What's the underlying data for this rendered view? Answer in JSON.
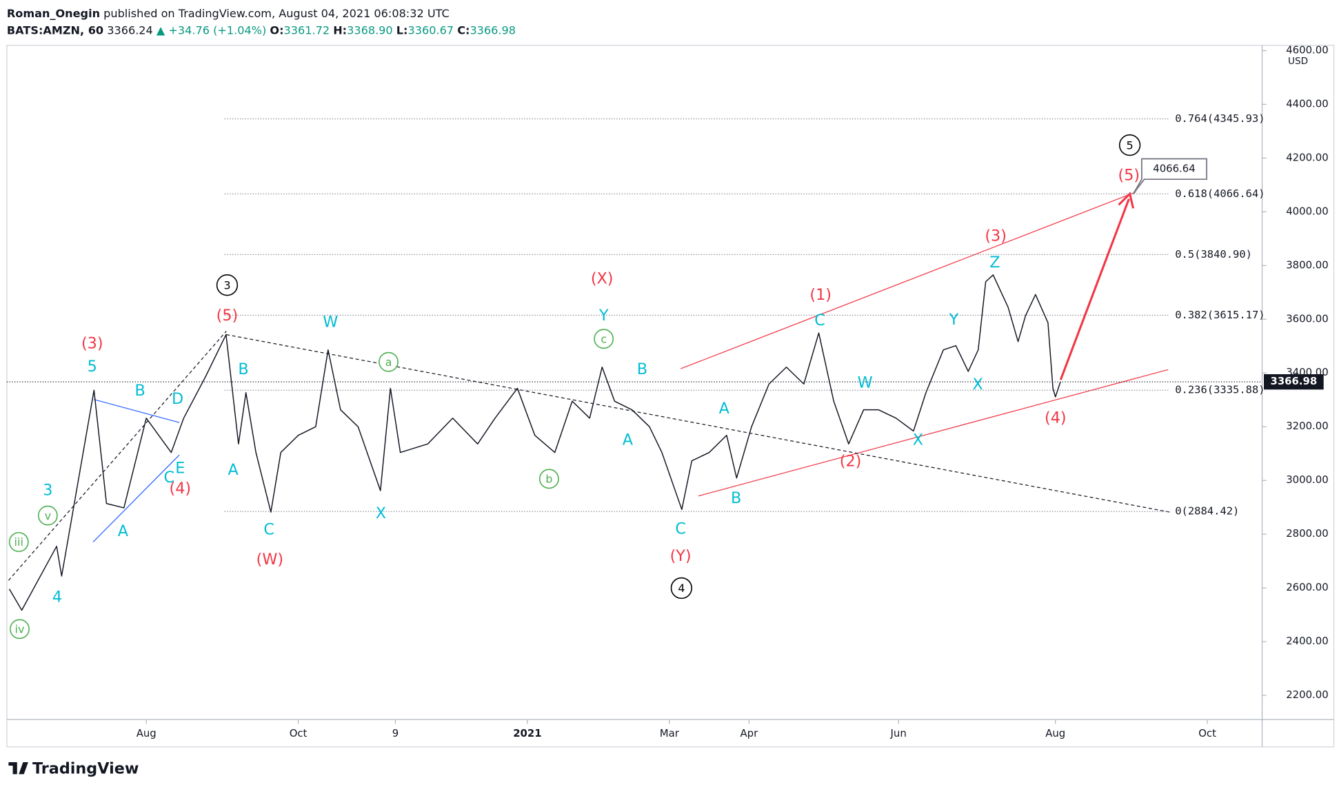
{
  "header": {
    "author": "Roman_Onegin",
    "published": "published on TradingView.com, August 04, 2021 06:08:32 UTC",
    "symbol": "BATS:AMZN, 60",
    "last": "3366.24",
    "change": "▲ +34.76 (+1.04%)",
    "ohlc": [
      {
        "label": "O:",
        "value": "3361.72"
      },
      {
        "label": "H:",
        "value": "3368.90"
      },
      {
        "label": "L:",
        "value": "3360.67"
      },
      {
        "label": "C:",
        "value": "3366.98"
      }
    ]
  },
  "chart_data": {
    "type": "line",
    "currency": "USD",
    "color": "#131722",
    "x": [
      -55,
      -50,
      -36,
      -34,
      -21,
      -16,
      -9,
      0,
      10,
      15,
      24,
      32,
      37,
      40,
      44,
      50,
      54,
      61,
      68,
      73,
      78,
      85,
      94,
      98,
      102,
      113,
      123,
      133,
      140,
      149,
      156,
      164,
      171,
      178,
      183,
      188,
      195,
      202,
      207,
      215,
      219,
      226,
      233,
      237,
      243,
      250,
      257,
      264,
      270,
      276,
      282,
      288,
      294,
      301,
      308,
      313,
      320,
      325,
      330,
      334,
      337,
      340,
      346,
      350,
      353,
      357,
      362,
      364,
      365,
      367
    ],
    "values": [
      2596,
      2517,
      2755,
      2644,
      3336,
      2914,
      2898,
      3232,
      3104,
      3232,
      3390,
      3543,
      3136,
      3327,
      3104,
      2882,
      3104,
      3168,
      3200,
      3486,
      3263,
      3200,
      2962,
      3343,
      3104,
      3136,
      3232,
      3136,
      3232,
      3343,
      3168,
      3104,
      3295,
      3232,
      3422,
      3295,
      3263,
      3200,
      3104,
      2892,
      3073,
      3104,
      3168,
      3009,
      3200,
      3359,
      3422,
      3359,
      3549,
      3295,
      3136,
      3263,
      3263,
      3232,
      3184,
      3327,
      3486,
      3502,
      3406,
      3486,
      3740,
      3765,
      3645,
      3517,
      3613,
      3692,
      3587,
      3343,
      3311,
      3366.98
    ],
    "xlim": [
      -56,
      448
    ],
    "ylim": [
      2110,
      4620
    ],
    "xticks": [
      {
        "value": 0,
        "label": "Aug"
      },
      {
        "value": 61,
        "label": "Oct"
      },
      {
        "value": 100,
        "label": "9"
      },
      {
        "value": 153,
        "label": "2021"
      },
      {
        "value": 210,
        "label": "Mar"
      },
      {
        "value": 242,
        "label": "Apr"
      },
      {
        "value": 302,
        "label": "Jun"
      },
      {
        "value": 365,
        "label": "Aug"
      },
      {
        "value": 426,
        "label": "Oct"
      }
    ],
    "yticks": [
      {
        "value": 2200,
        "label": "2200.00"
      },
      {
        "value": 2400,
        "label": "2400.00"
      },
      {
        "value": 2600,
        "label": "2600.00"
      },
      {
        "value": 2800,
        "label": "2800.00"
      },
      {
        "value": 3000,
        "label": "3000.00"
      },
      {
        "value": 3200,
        "label": "3200.00"
      },
      {
        "value": 3400,
        "label": "3400.00"
      },
      {
        "value": 3600,
        "label": "3600.00"
      },
      {
        "value": 3800,
        "label": "3800.00"
      },
      {
        "value": 4000,
        "label": "4000.00"
      },
      {
        "value": 4200,
        "label": "4200.00"
      },
      {
        "value": 4400,
        "label": "4400.00"
      },
      {
        "value": 4600,
        "label": "4600.00"
      }
    ],
    "grid": false,
    "fib_levels": [
      {
        "value": 4345.93,
        "label": "0.764(4345.93)"
      },
      {
        "value": 4066.64,
        "label": "0.618(4066.64)"
      },
      {
        "value": 3840.9,
        "label": "0.5(3840.90)"
      },
      {
        "value": 3615.17,
        "label": "0.382(3615.17)"
      },
      {
        "value": 3335.88,
        "label": "0.236(3335.88)"
      },
      {
        "value": 2884.42,
        "label": "0(2884.42)"
      }
    ],
    "target": 4066.64,
    "annotations": [
      {
        "text": "(3)",
        "color": "#f23645"
      },
      {
        "text": "(4)",
        "color": "#f23645"
      },
      {
        "text": "(5)",
        "color": "#f23645"
      },
      {
        "text": "(W)",
        "color": "#f23645"
      },
      {
        "text": "(X)",
        "color": "#f23645"
      },
      {
        "text": "(Y)",
        "color": "#f23645"
      },
      {
        "text": "(1)",
        "color": "#f23645"
      },
      {
        "text": "(2)",
        "color": "#f23645"
      },
      {
        "text": "(3)",
        "color": "#f23645"
      },
      {
        "text": "(4)",
        "color": "#f23645"
      },
      {
        "text": "(5)",
        "color": "#f23645"
      },
      {
        "text": "5",
        "color": "#00bcd4"
      },
      {
        "text": "3",
        "color": "#00bcd4"
      },
      {
        "text": "4",
        "color": "#00bcd4"
      },
      {
        "text": "A",
        "color": "#00bcd4"
      },
      {
        "text": "B",
        "color": "#00bcd4"
      },
      {
        "text": "C",
        "color": "#00bcd4"
      },
      {
        "text": "D",
        "color": "#00bcd4"
      },
      {
        "text": "E",
        "color": "#00bcd4"
      },
      {
        "text": "B",
        "color": "#00bcd4"
      },
      {
        "text": "A",
        "color": "#00bcd4"
      },
      {
        "text": "C",
        "color": "#00bcd4"
      },
      {
        "text": "W",
        "color": "#00bcd4"
      },
      {
        "text": "X",
        "color": "#00bcd4"
      },
      {
        "text": "Y",
        "color": "#00bcd4"
      },
      {
        "text": "B",
        "color": "#00bcd4"
      },
      {
        "text": "A",
        "color": "#00bcd4"
      },
      {
        "text": "C",
        "color": "#00bcd4"
      },
      {
        "text": "B",
        "color": "#00bcd4"
      },
      {
        "text": "A",
        "color": "#00bcd4"
      },
      {
        "text": "C",
        "color": "#00bcd4"
      },
      {
        "text": "W",
        "color": "#00bcd4"
      },
      {
        "text": "X",
        "color": "#00bcd4"
      },
      {
        "text": "Y",
        "color": "#00bcd4"
      },
      {
        "text": "X",
        "color": "#00bcd4"
      },
      {
        "text": "Z",
        "color": "#00bcd4"
      },
      {
        "text": "iii",
        "color": "#4caf50",
        "circled": true
      },
      {
        "text": "v",
        "color": "#4caf50",
        "circled": true
      },
      {
        "text": "iv",
        "color": "#4caf50",
        "circled": true
      },
      {
        "text": "a",
        "color": "#4caf50",
        "circled": true
      },
      {
        "text": "b",
        "color": "#4caf50",
        "circled": true
      },
      {
        "text": "c",
        "color": "#4caf50",
        "circled": true
      },
      {
        "text": "3",
        "color": "#000000",
        "circled": true
      },
      {
        "text": "4",
        "color": "#000000",
        "circled": true
      },
      {
        "text": "5",
        "color": "#000000",
        "circled": true
      }
    ]
  },
  "footer": {
    "logo": "TradingView"
  }
}
